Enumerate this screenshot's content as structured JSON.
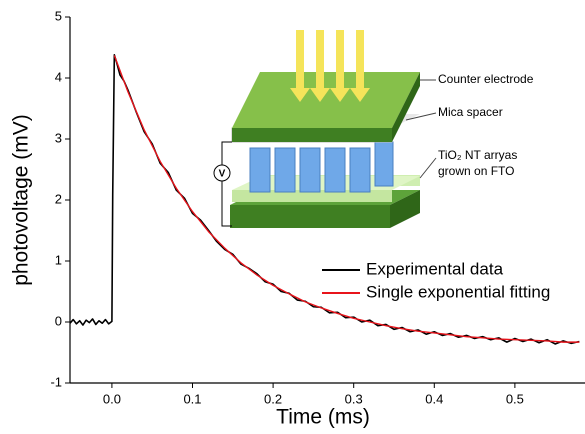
{
  "chart_data": {
    "type": "line",
    "xlabel": "Time (ms)",
    "ylabel": "photovoltage (mV)",
    "xlim": [
      -0.052,
      0.587
    ],
    "ylim": [
      -1,
      5
    ],
    "xticks": [
      {
        "value": 0,
        "label": "0.0"
      },
      0.1,
      0.2,
      0.3,
      0.4,
      0.5
    ],
    "yticks": [
      -1,
      0,
      1,
      2,
      3,
      4,
      5
    ],
    "legend": "lower right",
    "series": [
      {
        "name": "Experimental data",
        "color": "#000000",
        "x": [
          -0.052,
          -0.048,
          -0.044,
          -0.04,
          -0.036,
          -0.032,
          -0.028,
          -0.024,
          -0.02,
          -0.016,
          -0.012,
          -0.008,
          -0.004,
          0,
          0.001,
          0.003,
          0.006,
          0.01,
          0.015,
          0.02,
          0.03,
          0.04,
          0.05,
          0.06,
          0.07,
          0.08,
          0.09,
          0.1,
          0.11,
          0.12,
          0.13,
          0.14,
          0.15,
          0.16,
          0.17,
          0.18,
          0.19,
          0.2,
          0.21,
          0.22,
          0.23,
          0.24,
          0.25,
          0.26,
          0.27,
          0.28,
          0.29,
          0.3,
          0.31,
          0.32,
          0.33,
          0.34,
          0.35,
          0.36,
          0.37,
          0.38,
          0.39,
          0.4,
          0.41,
          0.42,
          0.43,
          0.44,
          0.45,
          0.46,
          0.47,
          0.48,
          0.49,
          0.5,
          0.51,
          0.52,
          0.53,
          0.54,
          0.55,
          0.56,
          0.57,
          0.58
        ],
        "values": [
          -0.02,
          0.04,
          -0.03,
          0.02,
          -0.05,
          0.03,
          -0.01,
          0.05,
          -0.04,
          0.02,
          -0.02,
          0.04,
          -0.03,
          0.01,
          2.1,
          4.38,
          4.25,
          4.05,
          3.95,
          3.8,
          3.45,
          3.12,
          2.92,
          2.6,
          2.45,
          2.16,
          2.03,
          1.78,
          1.67,
          1.5,
          1.32,
          1.19,
          1.11,
          0.95,
          0.88,
          0.79,
          0.66,
          0.62,
          0.5,
          0.47,
          0.36,
          0.34,
          0.25,
          0.24,
          0.15,
          0.16,
          0.07,
          0.08,
          0,
          0.03,
          -0.06,
          -0.04,
          -0.12,
          -0.09,
          -0.16,
          -0.13,
          -0.2,
          -0.16,
          -0.22,
          -0.19,
          -0.25,
          -0.22,
          -0.27,
          -0.24,
          -0.29,
          -0.26,
          -0.33,
          -0.27,
          -0.32,
          -0.28,
          -0.34,
          -0.29,
          -0.36,
          -0.31,
          -0.35,
          -0.32
        ]
      },
      {
        "name": "Single exponential fitting",
        "color": "#e8141b",
        "x": [
          0.003,
          0.02,
          0.04,
          0.06,
          0.08,
          0.1,
          0.12,
          0.14,
          0.16,
          0.18,
          0.2,
          0.22,
          0.24,
          0.26,
          0.28,
          0.3,
          0.32,
          0.34,
          0.36,
          0.38,
          0.4,
          0.42,
          0.44,
          0.46,
          0.48,
          0.5,
          0.52,
          0.54,
          0.56,
          0.58
        ],
        "values": [
          4.37,
          3.77,
          3.15,
          2.63,
          2.19,
          1.81,
          1.48,
          1.21,
          0.97,
          0.77,
          0.6,
          0.46,
          0.33,
          0.23,
          0.14,
          0.06,
          0,
          -0.06,
          -0.11,
          -0.15,
          -0.18,
          -0.21,
          -0.24,
          -0.26,
          -0.28,
          -0.29,
          -0.3,
          -0.31,
          -0.33,
          -0.33
        ]
      }
    ],
    "annotations": [
      "Counter electrode",
      "Mica spacer",
      "TiO₂ NT arryas",
      "grown on FTO",
      "V"
    ]
  }
}
